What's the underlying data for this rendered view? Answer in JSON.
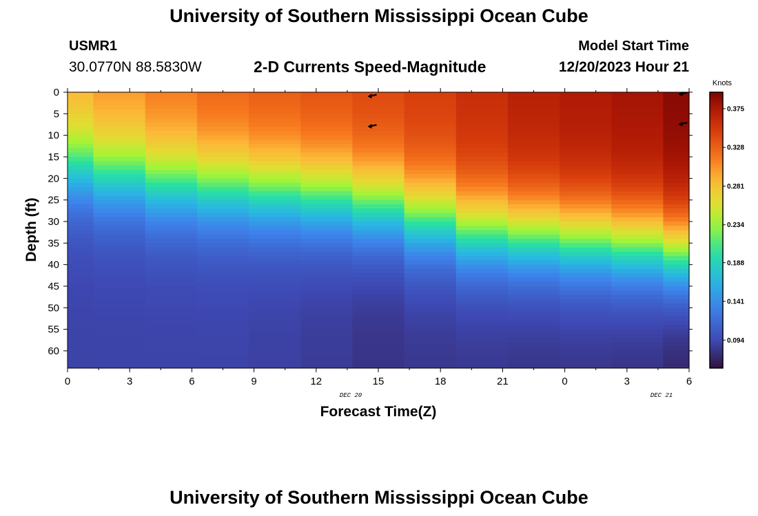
{
  "header": {
    "title": "University of Southern Mississippi Ocean Cube",
    "station": "USMR1",
    "coords": "30.0770N  88.5830W",
    "subtitle": "2-D Currents Speed-Magnitude",
    "model_start_label": "Model Start Time",
    "model_start_value": "12/20/2023 Hour 21"
  },
  "footer": {
    "title": "University of Southern Mississippi Ocean Cube"
  },
  "chart_data": {
    "type": "heatmap",
    "xlabel": "Forecast Time(Z)",
    "ylabel": "Depth (ft)",
    "x_tick_labels": [
      "0",
      "3",
      "6",
      "9",
      "12",
      "15",
      "18",
      "21",
      "0",
      "3",
      "6"
    ],
    "date_labels": [
      {
        "text": "DEC 20",
        "at_tick": 5
      },
      {
        "text": "DEC 21",
        "at_tick": 10
      }
    ],
    "y_tick_labels": [
      "0",
      "5",
      "10",
      "15",
      "20",
      "25",
      "30",
      "35",
      "40",
      "45",
      "50",
      "55",
      "60"
    ],
    "xlim_hours": [
      0,
      30
    ],
    "ylim_ft": [
      0,
      64
    ],
    "colorbar": {
      "unit": "Knots",
      "tick_labels": [
        "0.375",
        "0.328",
        "0.281",
        "0.234",
        "0.188",
        "0.141",
        "0.094"
      ],
      "tick_values": [
        0.375,
        0.328,
        0.281,
        0.234,
        0.188,
        0.141,
        0.094
      ],
      "range": [
        0.06,
        0.395
      ]
    },
    "columns": [
      {
        "t_start": 0.0,
        "t_end": 1.25,
        "surface": 0.3,
        "mid_depth": 17,
        "bottom": 0.09
      },
      {
        "t_start": 1.25,
        "t_end": 3.75,
        "surface": 0.31,
        "mid_depth": 19,
        "bottom": 0.09
      },
      {
        "t_start": 3.75,
        "t_end": 6.25,
        "surface": 0.32,
        "mid_depth": 21,
        "bottom": 0.09
      },
      {
        "t_start": 6.25,
        "t_end": 8.75,
        "surface": 0.33,
        "mid_depth": 22,
        "bottom": 0.09
      },
      {
        "t_start": 8.75,
        "t_end": 11.25,
        "surface": 0.335,
        "mid_depth": 23,
        "bottom": 0.088
      },
      {
        "t_start": 11.25,
        "t_end": 13.75,
        "surface": 0.34,
        "mid_depth": 24,
        "bottom": 0.085
      },
      {
        "t_start": 13.75,
        "t_end": 16.25,
        "surface": 0.345,
        "mid_depth": 26,
        "bottom": 0.08
      },
      {
        "t_start": 16.25,
        "t_end": 18.75,
        "surface": 0.35,
        "mid_depth": 29,
        "bottom": 0.082
      },
      {
        "t_start": 18.75,
        "t_end": 21.25,
        "surface": 0.36,
        "mid_depth": 32,
        "bottom": 0.082
      },
      {
        "t_start": 21.25,
        "t_end": 23.75,
        "surface": 0.37,
        "mid_depth": 33,
        "bottom": 0.08
      },
      {
        "t_start": 23.75,
        "t_end": 26.25,
        "surface": 0.375,
        "mid_depth": 34,
        "bottom": 0.08
      },
      {
        "t_start": 26.25,
        "t_end": 28.75,
        "surface": 0.38,
        "mid_depth": 35,
        "bottom": 0.078
      },
      {
        "t_start": 28.75,
        "t_end": 30.0,
        "surface": 0.39,
        "mid_depth": 37,
        "bottom": 0.07
      }
    ],
    "vectors": [
      {
        "t": 14.75,
        "depth": 0.5,
        "direction": "west"
      },
      {
        "t": 14.75,
        "depth": 7.5,
        "direction": "west"
      },
      {
        "t": 29.75,
        "depth": 0.0,
        "direction": "west"
      },
      {
        "t": 29.75,
        "depth": 7.0,
        "direction": "west"
      }
    ]
  }
}
